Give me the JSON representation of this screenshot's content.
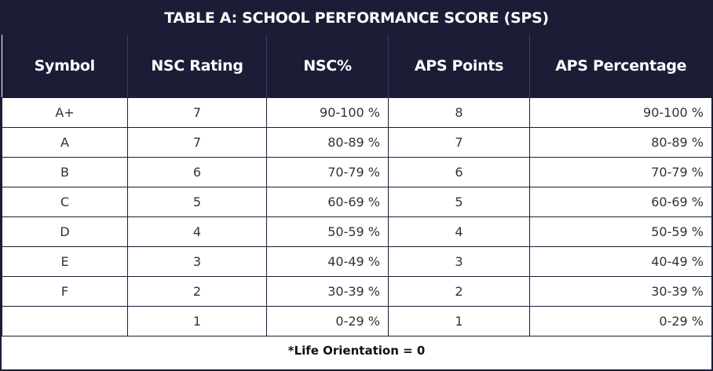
{
  "title": "TABLE A: SCHOOL PERFORMANCE SCORE (SPS)",
  "table": {
    "header": [
      "Symbol",
      "NSC Rating",
      "NSC%",
      "APS Points",
      "APS Percentage"
    ],
    "rows": [
      [
        "A+",
        "7",
        "90-100 %",
        "8",
        "90-100 %"
      ],
      [
        "A",
        "7",
        "80-89 %",
        "7",
        "80-89 %"
      ],
      [
        "B",
        "6",
        "70-79 %",
        "6",
        "70-79 %"
      ],
      [
        "C",
        "5",
        "60-69 %",
        "5",
        "60-69 %"
      ],
      [
        "D",
        "4",
        "50-59 %",
        "4",
        "50-59 %"
      ],
      [
        "E",
        "3",
        "40-49 %",
        "3",
        "40-49 %"
      ],
      [
        "F",
        "2",
        "30-39 %",
        "2",
        "30-39 %"
      ],
      [
        null,
        "1",
        "0-29 %",
        "1",
        "0-29 %"
      ]
    ]
  },
  "footnote": "*Life Orientation = 0"
}
